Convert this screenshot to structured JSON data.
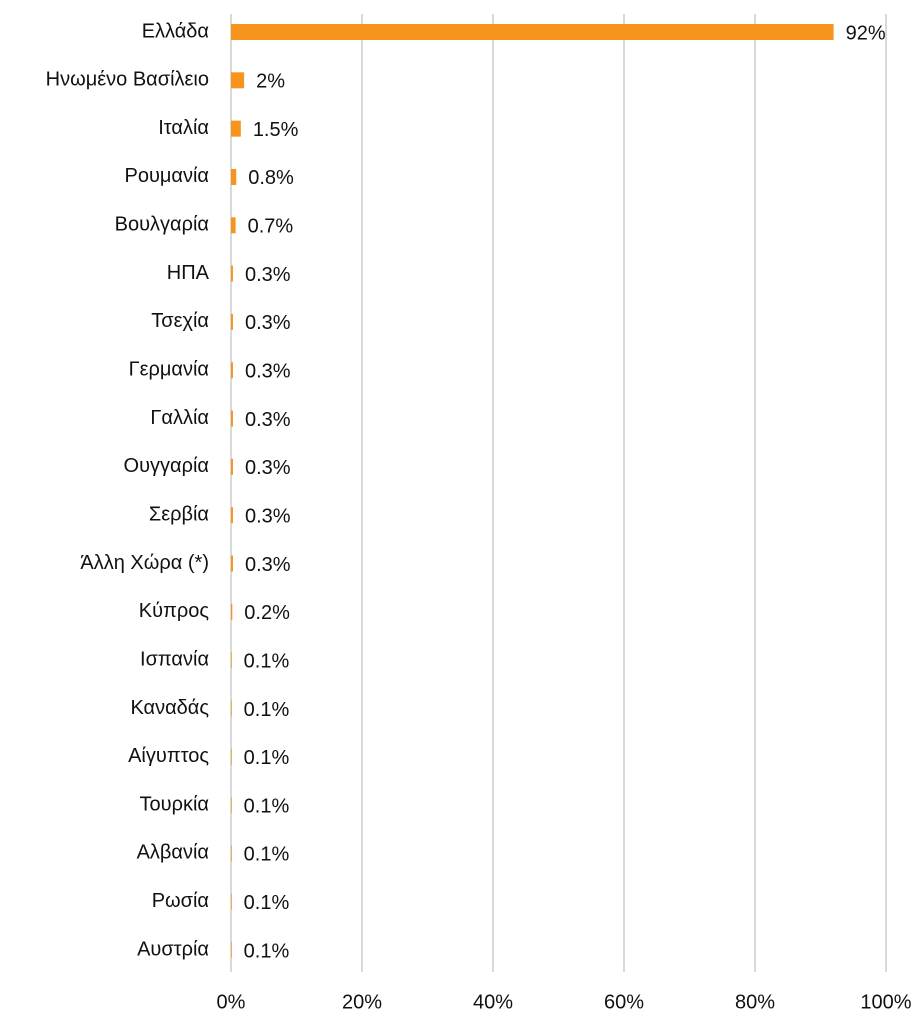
{
  "chart_data": {
    "type": "bar",
    "orientation": "horizontal",
    "categories": [
      "Ελλάδα",
      "Ηνωμένο Βασίλειο",
      "Ιταλία",
      "Ρουμανία",
      "Βουλγαρία",
      "ΗΠΑ",
      "Τσεχία",
      "Γερμανία",
      "Γαλλία",
      "Ουγγαρία",
      "Σερβία",
      "Άλλη Χώρα (*)",
      "Κύπρος",
      "Ισπανία",
      "Καναδάς",
      "Αίγυπτος",
      "Τουρκία",
      "Αλβανία",
      "Ρωσία",
      "Αυστρία"
    ],
    "values": [
      92,
      2,
      1.5,
      0.8,
      0.7,
      0.3,
      0.3,
      0.3,
      0.3,
      0.3,
      0.3,
      0.3,
      0.2,
      0.1,
      0.1,
      0.1,
      0.1,
      0.1,
      0.1,
      0.1
    ],
    "value_labels": [
      "92%",
      "2%",
      "1.5%",
      "0.8%",
      "0.7%",
      "0.3%",
      "0.3%",
      "0.3%",
      "0.3%",
      "0.3%",
      "0.3%",
      "0.3%",
      "0.2%",
      "0.1%",
      "0.1%",
      "0.1%",
      "0.1%",
      "0.1%",
      "0.1%",
      "0.1%"
    ],
    "color": "#f7941d",
    "xlim": [
      0,
      100
    ],
    "xticks": [
      {
        "value": 0,
        "label": "0%"
      },
      {
        "value": 20,
        "label": "20%"
      },
      {
        "value": 40,
        "label": "40%"
      },
      {
        "value": 60,
        "label": "60%"
      },
      {
        "value": 80,
        "label": "80%"
      },
      {
        "value": 100,
        "label": "100%"
      }
    ],
    "grid": true
  }
}
